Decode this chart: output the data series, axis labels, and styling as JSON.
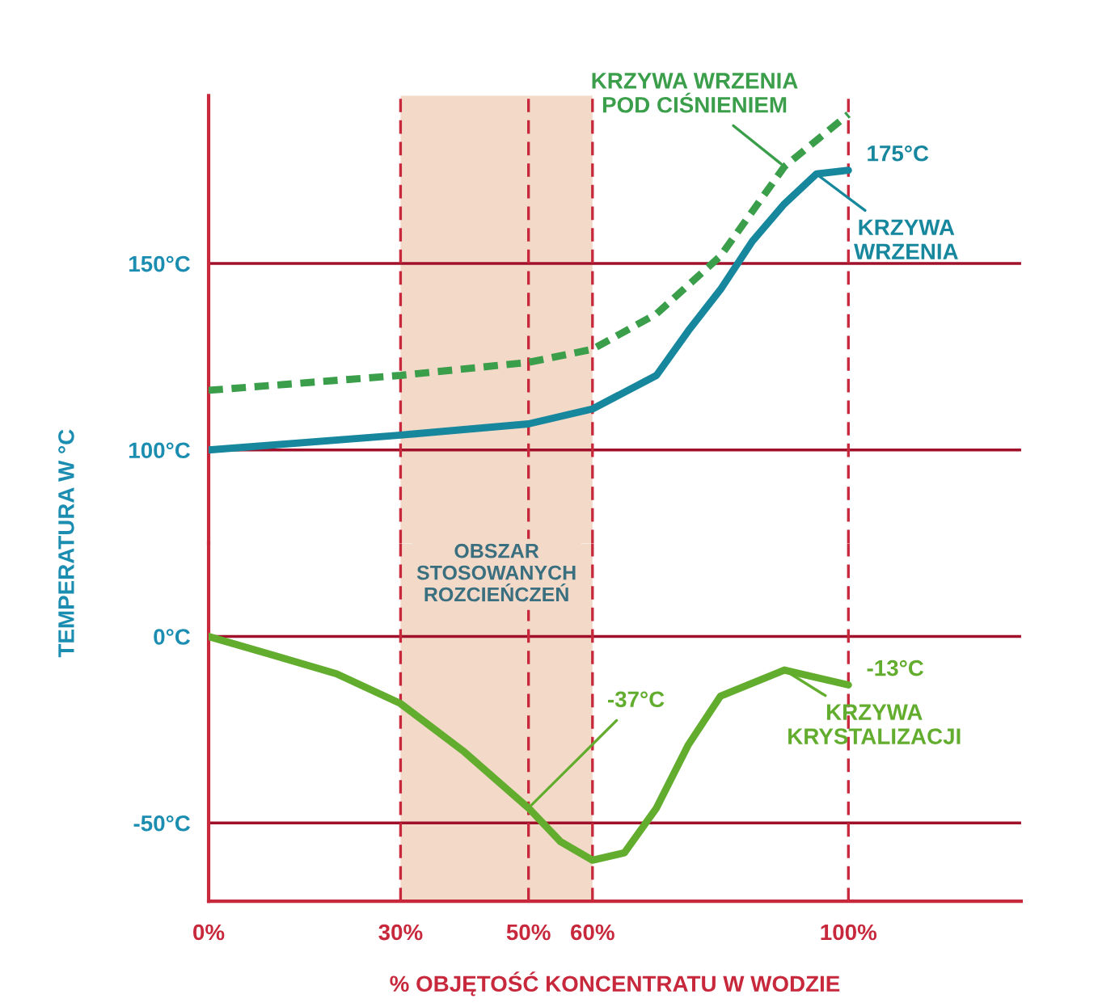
{
  "chart_data": [
    {
      "type": "line",
      "ylabel": "TEMPERATURA W °C",
      "xlim": [
        0,
        127
      ],
      "ylim": [
        75,
        195
      ],
      "yticks": [
        {
          "value": 100,
          "label": "100°C"
        },
        {
          "value": 150,
          "label": "150°C"
        }
      ],
      "tick_labels": "y",
      "grid": "y",
      "legend": "right",
      "marker": "none",
      "series": [
        {
          "name": "KRZYWA WRZENIA POD CIŚNIENIEM",
          "color": "#3a9e4a",
          "line_style": "dotted",
          "x": [
            0,
            30,
            50,
            60,
            70,
            80,
            90,
            100
          ],
          "values": [
            116,
            120,
            123.5,
            127,
            136.5,
            152,
            176,
            190
          ]
        },
        {
          "name": "KRZYWA WRZENIA",
          "color": "#17879e",
          "line_style": "solid",
          "x": [
            0,
            30,
            50,
            60,
            70,
            75,
            80,
            85,
            90,
            95,
            100
          ],
          "values": [
            100,
            104,
            107,
            111,
            120,
            132,
            143,
            156,
            166,
            174,
            175
          ],
          "value_labels": [
            null,
            null,
            null,
            null,
            null,
            null,
            null,
            null,
            null,
            null,
            "175°C"
          ]
        }
      ],
      "ref_lines": [
        {
          "axis": "x",
          "value": 30,
          "color": "#c8283c",
          "line_style": "dashed"
        },
        {
          "axis": "x",
          "value": 50,
          "color": "#c8283c",
          "line_style": "dashed"
        },
        {
          "axis": "x",
          "value": 60,
          "color": "#c8283c",
          "line_style": "dashed"
        },
        {
          "axis": "x",
          "value": 100,
          "color": "#c8283c",
          "line_style": "dashed"
        }
      ],
      "bands": [
        {
          "axis": "x",
          "from": 30,
          "to": 60,
          "color": "#f3d9c8"
        }
      ]
    },
    {
      "type": "line",
      "xlabel": "% OBJĘTOŚĆ KONCENTRATU W WODZIE",
      "xlim": [
        0,
        127
      ],
      "xticks": [
        {
          "value": 0,
          "label": "0%"
        },
        {
          "value": 30,
          "label": "30%"
        },
        {
          "value": 50,
          "label": "50%"
        },
        {
          "value": 60,
          "label": "60%"
        },
        {
          "value": 100,
          "label": "100%"
        }
      ],
      "ylim": [
        -71,
        25
      ],
      "yticks": [
        {
          "value": -50,
          "label": "-50°C"
        },
        {
          "value": 0,
          "label": "0°C"
        }
      ],
      "grid": "y",
      "legend": "right",
      "marker": "none",
      "series": [
        {
          "name": "KRZYWA KRYSTALIZACJI",
          "color": "#62ad2e",
          "line_style": "solid",
          "x": [
            0,
            10,
            20,
            30,
            40,
            50,
            55,
            60,
            65,
            70,
            75,
            80,
            90,
            100
          ],
          "values": [
            0,
            -5,
            -10,
            -18,
            -31,
            -46,
            -55,
            -60,
            -58,
            -46,
            -29,
            -16,
            -9,
            -13
          ],
          "value_labels": [
            null,
            null,
            null,
            null,
            null,
            null,
            null,
            null,
            null,
            null,
            null,
            null,
            null,
            "-13°C"
          ]
        }
      ],
      "ref_lines": [
        {
          "axis": "x",
          "value": 30,
          "color": "#c8283c",
          "line_style": "dashed"
        },
        {
          "axis": "x",
          "value": 50,
          "color": "#c8283c",
          "line_style": "dashed"
        },
        {
          "axis": "x",
          "value": 60,
          "color": "#c8283c",
          "line_style": "dashed"
        },
        {
          "axis": "x",
          "value": 100,
          "color": "#c8283c",
          "line_style": "dashed"
        }
      ],
      "bands": [
        {
          "axis": "x",
          "from": 30,
          "to": 60,
          "label": "OBSZAR\nSTOSOWANYCH\nROZCIEŃCZEŃ",
          "color": "#f3d9c8"
        }
      ],
      "annotations": [
        {
          "text": "-37°C",
          "x": 50,
          "y": -46
        }
      ]
    }
  ]
}
